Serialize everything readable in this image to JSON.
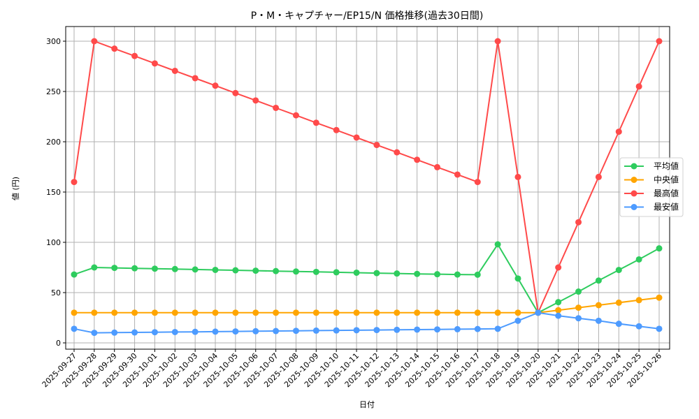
{
  "chart_data": {
    "type": "line",
    "title": "P・M・キャプチャー/EP15/N 価格推移(過去30日間)",
    "xlabel": "日付",
    "ylabel": "値 (円)",
    "ylim": [
      0,
      300
    ],
    "yticks": [
      0,
      50,
      100,
      150,
      200,
      250,
      300
    ],
    "grid": true,
    "legend_position": "center right",
    "x": [
      "2025-09-27",
      "2025-09-28",
      "2025-09-29",
      "2025-09-30",
      "2025-10-01",
      "2025-10-02",
      "2025-10-03",
      "2025-10-04",
      "2025-10-05",
      "2025-10-06",
      "2025-10-07",
      "2025-10-08",
      "2025-10-09",
      "2025-10-10",
      "2025-10-11",
      "2025-10-12",
      "2025-10-13",
      "2025-10-14",
      "2025-10-15",
      "2025-10-16",
      "2025-10-17",
      "2025-10-18",
      "2025-10-19",
      "2025-10-20",
      "2025-10-21",
      "2025-10-22",
      "2025-10-23",
      "2025-10-24",
      "2025-10-25",
      "2025-10-26"
    ],
    "series": [
      {
        "name": "平均値",
        "color": "#2ecc5e",
        "values": [
          68,
          75,
          74.6,
          74.2,
          73.8,
          73.4,
          73,
          72.6,
          72.2,
          71.8,
          71.4,
          71,
          70.6,
          70.2,
          69.8,
          69.4,
          69,
          68.6,
          68.3,
          68,
          67.8,
          98,
          64,
          30,
          40.5,
          51,
          62,
          72.5,
          83,
          94
        ]
      },
      {
        "name": "中央値",
        "color": "#ffa500",
        "values": [
          30,
          30,
          30,
          30,
          30,
          30,
          30,
          30,
          30,
          30,
          30,
          30,
          30,
          30,
          30,
          30,
          30,
          30,
          30,
          30,
          30,
          30,
          30,
          30,
          32.5,
          35,
          37.5,
          40,
          42.5,
          45
        ]
      },
      {
        "name": "最高値",
        "color": "#ff4a4a",
        "values": [
          160,
          300,
          292.6,
          285.3,
          277.9,
          270.5,
          263.2,
          255.8,
          248.4,
          241.1,
          233.7,
          226.3,
          218.9,
          211.6,
          204.2,
          196.8,
          189.5,
          182.1,
          174.7,
          167.4,
          160,
          300,
          165,
          30,
          75,
          120,
          165,
          210,
          255,
          300
        ]
      },
      {
        "name": "最安値",
        "color": "#4d9bff",
        "values": [
          14,
          10,
          10.2,
          10.4,
          10.6,
          10.8,
          11,
          11.2,
          11.4,
          11.6,
          11.8,
          12,
          12.2,
          12.4,
          12.6,
          12.8,
          13,
          13.2,
          13.4,
          13.6,
          13.8,
          14,
          22,
          30,
          27,
          24.5,
          22,
          19,
          16.5,
          14
        ]
      }
    ]
  }
}
